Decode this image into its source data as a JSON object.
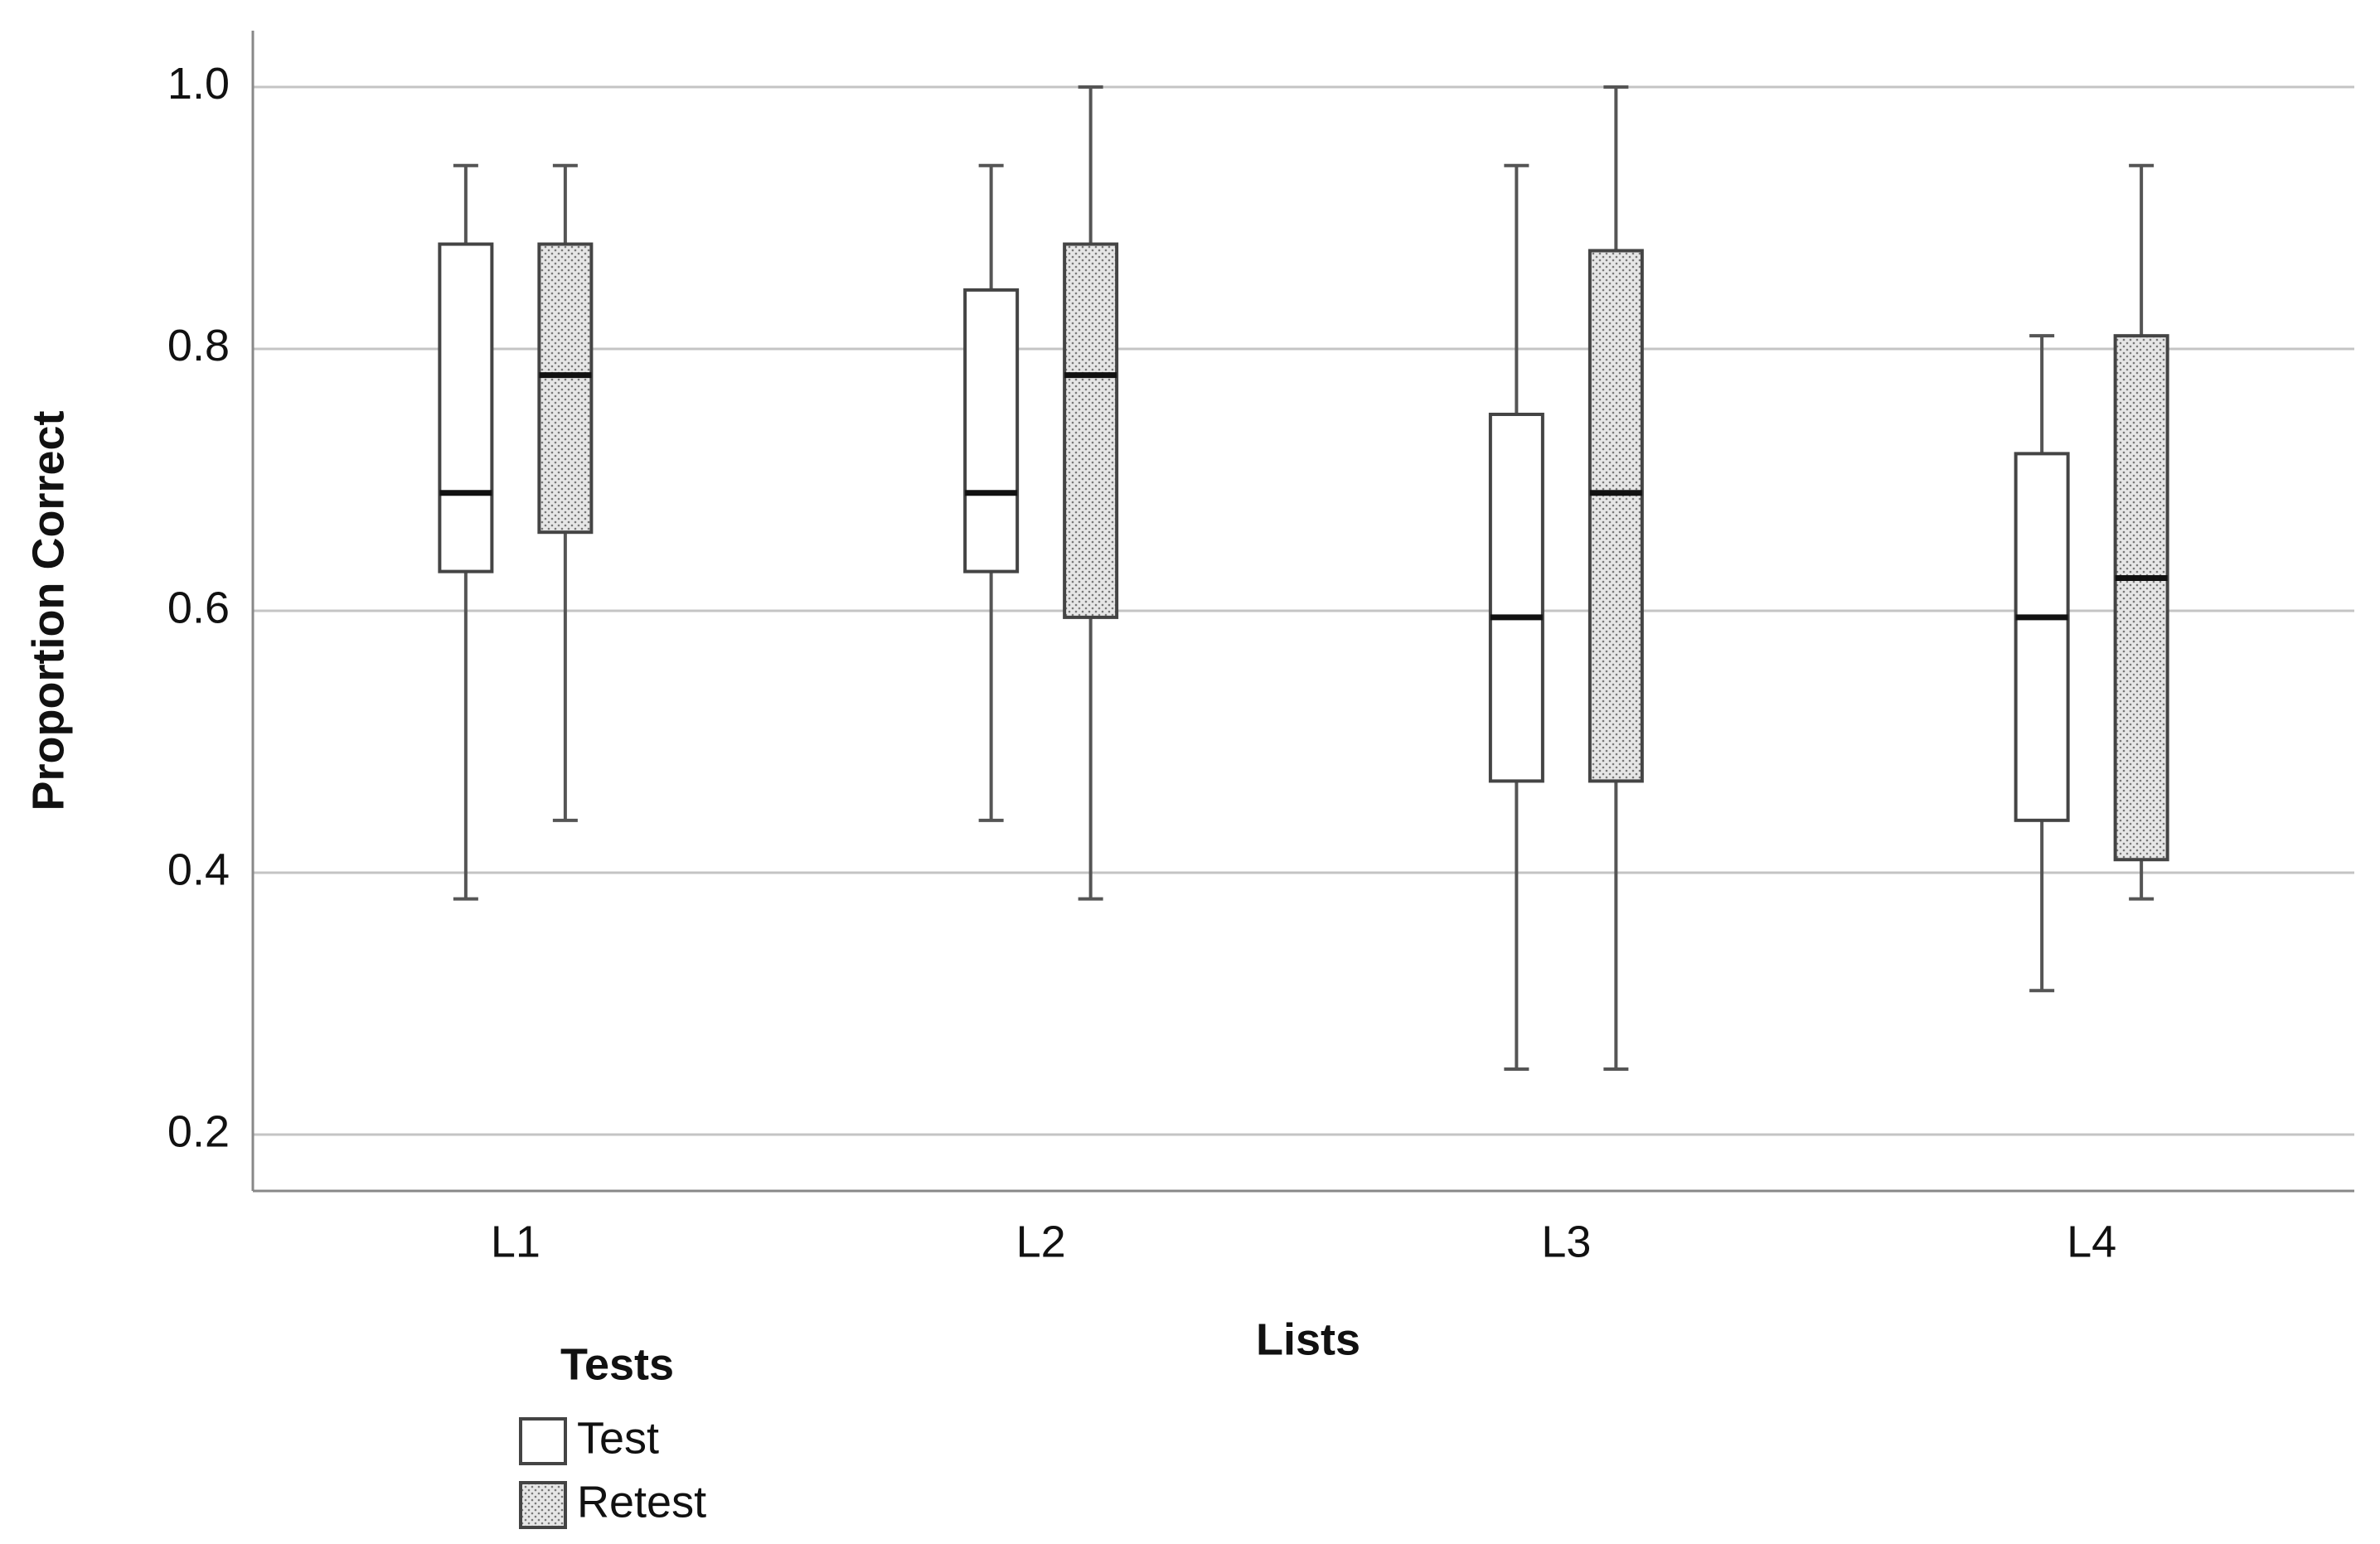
{
  "chart_data": {
    "type": "box",
    "y_label": "Proportion Correct",
    "x_label": "Lists",
    "legend_title": "Tests",
    "categories": [
      "L1",
      "L2",
      "L3",
      "L4"
    ],
    "ylim": [
      0.157,
      1.043
    ],
    "yticks": [
      0.2,
      0.4,
      0.6,
      0.8,
      {
        "value": 1,
        "label": "1.0"
      }
    ],
    "grid": true,
    "series": [
      {
        "name": "Test",
        "color": "#ffffff",
        "pattern": false,
        "values": [
          {
            "min": 0.38,
            "q1": 0.63,
            "median": 0.69,
            "q3": 0.88,
            "max": 0.94
          },
          {
            "min": 0.44,
            "q1": 0.63,
            "median": 0.69,
            "q3": 0.845,
            "max": 0.94
          },
          {
            "min": 0.25,
            "q1": 0.47,
            "median": 0.595,
            "q3": 0.75,
            "max": 0.94
          },
          {
            "min": 0.31,
            "q1": 0.44,
            "median": 0.595,
            "q3": 0.72,
            "max": 0.81
          }
        ]
      },
      {
        "name": "Retest",
        "color": "#e6e6e6",
        "pattern": true,
        "values": [
          {
            "min": 0.44,
            "q1": 0.66,
            "median": 0.78,
            "q3": 0.88,
            "max": 0.94
          },
          {
            "min": 0.38,
            "q1": 0.595,
            "median": 0.78,
            "q3": 0.88,
            "max": 1.0
          },
          {
            "min": 0.25,
            "q1": 0.47,
            "median": 0.69,
            "q3": 0.875,
            "max": 1.0
          },
          {
            "min": 0.38,
            "q1": 0.41,
            "median": 0.625,
            "q3": 0.81,
            "max": 0.94
          }
        ]
      }
    ]
  }
}
